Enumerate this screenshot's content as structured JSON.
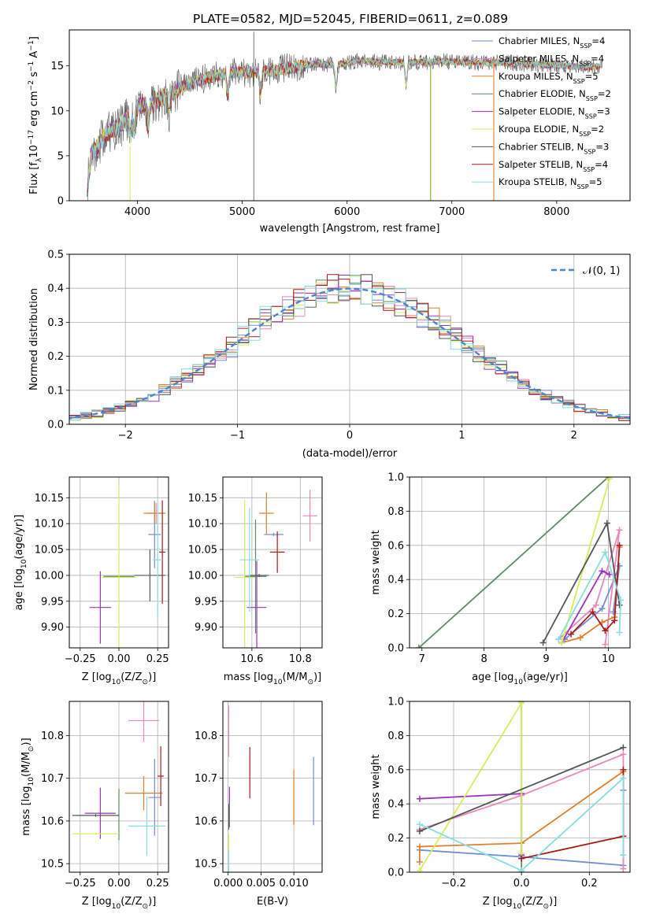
{
  "figure_title": "PLATE=0582, MJD=52045, FIBERID=0611, z=0.089",
  "series_colors": {
    "Chabrier MILES": "#6f8fd6",
    "Salpeter MILES": "#e888bb",
    "Kroupa MILES": "#e0802c",
    "Chabrier ELODIE": "#5e8c62",
    "Salpeter ELODIE": "#9933bb",
    "Kroupa ELODIE": "#d4ee5e",
    "Chabrier STELIB": "#555555",
    "Salpeter STELIB": "#a81c1c",
    "Kroupa STELIB": "#88dde0"
  },
  "chart_data": [
    {
      "id": "spectrum",
      "type": "line",
      "title": "PLATE=0582, MJD=52045, FIBERID=0611, z=0.089",
      "xlabel": "wavelength [Angstrom, rest frame]",
      "ylabel_parts": [
        "Flux [f",
        "λ",
        "10",
        "−17",
        " erg cm",
        "−2",
        " s",
        "−1",
        " A",
        "−1",
        "]"
      ],
      "xlim": [
        3350,
        8700
      ],
      "ylim": [
        0,
        19
      ],
      "xticks": [
        4000,
        5000,
        6000,
        7000,
        8000
      ],
      "yticks": [
        0,
        5,
        10,
        15
      ],
      "grid": false,
      "legend_position": "upper right",
      "legend": [
        {
          "label": "Chabrier MILES, N",
          "sub": "SSP",
          "suffix": "=4",
          "color": "#6f8fd6"
        },
        {
          "label": "Salpeter MILES, N",
          "sub": "SSP",
          "suffix": "=4",
          "color": "#e888bb"
        },
        {
          "label": "Kroupa MILES, N",
          "sub": "SSP",
          "suffix": "=5",
          "color": "#e0802c"
        },
        {
          "label": "Chabrier ELODIE, N",
          "sub": "SSP",
          "suffix": "=2",
          "color": "#5e8c62"
        },
        {
          "label": "Salpeter ELODIE, N",
          "sub": "SSP",
          "suffix": "=3",
          "color": "#9933bb"
        },
        {
          "label": "Kroupa ELODIE, N",
          "sub": "SSP",
          "suffix": "=2",
          "color": "#d4ee5e"
        },
        {
          "label": "Chabrier STELIB, N",
          "sub": "SSP",
          "suffix": "=3",
          "color": "#555555"
        },
        {
          "label": "Salpeter STELIB, N",
          "sub": "SSP",
          "suffix": "=4",
          "color": "#a81c1c"
        },
        {
          "label": "Kroupa STELIB, N",
          "sub": "SSP",
          "suffix": "=5",
          "color": "#88dde0"
        }
      ],
      "data_trend": {
        "wavelength": [
          3530,
          3700,
          3850,
          4000,
          4150,
          4300,
          4500,
          4700,
          4900,
          5100,
          5300,
          5500,
          5700,
          5900,
          6100,
          6300,
          6500,
          6700,
          6900,
          7100,
          7300,
          7500,
          7700,
          7900,
          8100,
          8300
        ],
        "flux": [
          4.5,
          7.5,
          8.5,
          10.5,
          10.8,
          12.0,
          13.0,
          13.8,
          14.3,
          14.3,
          14.5,
          14.9,
          15.2,
          15.1,
          15.6,
          15.4,
          15.4,
          15.4,
          15.5,
          15.4,
          15.3,
          15.4,
          15.2,
          15.1,
          15.0,
          14.9
        ]
      },
      "notable_features": {
        "spike_wavelengths": [
          5110,
          6800,
          7400
        ],
        "absorption_wavelengths": [
          3934,
          3969,
          4102,
          4300,
          4861,
          5175,
          5895,
          6563
        ]
      }
    },
    {
      "id": "residual-hist",
      "type": "bar",
      "xlabel": "(data-model)/error",
      "ylabel": "Normed distribution",
      "xlim": [
        -2.5,
        2.5
      ],
      "ylim": [
        0,
        0.5
      ],
      "xticks": [
        -2,
        -1,
        0,
        1,
        2
      ],
      "yticks": [
        0.0,
        0.1,
        0.2,
        0.3,
        0.4,
        0.5
      ],
      "grid": true,
      "legend_position": "upper right",
      "legend": [
        {
          "label": "𝒩(0, 1)",
          "color": "#4a86d0",
          "style": "dashed"
        }
      ],
      "bins_center": [
        -2.45,
        -2.35,
        -2.25,
        -2.15,
        -2.05,
        -1.95,
        -1.85,
        -1.75,
        -1.65,
        -1.55,
        -1.45,
        -1.35,
        -1.25,
        -1.15,
        -1.05,
        -0.95,
        -0.85,
        -0.75,
        -0.65,
        -0.55,
        -0.45,
        -0.35,
        -0.25,
        -0.15,
        -0.05,
        0.05,
        0.15,
        0.25,
        0.35,
        0.45,
        0.55,
        0.65,
        0.75,
        0.85,
        0.95,
        1.05,
        1.15,
        1.25,
        1.35,
        1.45,
        1.55,
        1.65,
        1.75,
        1.85,
        1.95,
        2.05,
        2.15,
        2.25,
        2.35,
        2.45
      ],
      "reference_curve": "standard normal N(0,1) density",
      "series_count": 9
    },
    {
      "id": "age-vs-Z",
      "type": "scatter",
      "xlabel_parts": [
        "Z [log",
        "10",
        "(Z/Z",
        "⊙",
        ")]"
      ],
      "ylabel_parts": [
        "age  [log",
        "10",
        "(age/yr)]"
      ],
      "xlim": [
        -0.32,
        0.32
      ],
      "ylim": [
        9.86,
        10.19
      ],
      "xticks": [
        -0.25,
        0.0,
        0.25
      ],
      "xtick_labels": [
        "−0.25",
        "0.00",
        "0.25"
      ],
      "yticks": [
        9.9,
        9.95,
        10.0,
        10.05,
        10.1,
        10.15
      ],
      "grid": true,
      "points": [
        {
          "series": "Chabrier MILES",
          "x": 0.23,
          "xerr": 0.04,
          "y": 10.079,
          "yerr": 0.065
        },
        {
          "series": "Salpeter MILES",
          "x": 0.24,
          "xerr": 0.05,
          "y": 10.12,
          "yerr": 0.02
        },
        {
          "series": "Kroupa MILES",
          "x": 0.23,
          "xerr": 0.07,
          "y": 10.12,
          "yerr": 0.02
        },
        {
          "series": "Chabrier ELODIE",
          "x": 0.0,
          "xerr": 0.1,
          "y": 9.998,
          "yerr": 0.003
        },
        {
          "series": "Salpeter ELODIE",
          "x": -0.12,
          "xerr": 0.07,
          "y": 9.938,
          "yerr": 0.07
        },
        {
          "series": "Kroupa ELODIE",
          "x": -0.0,
          "xerr": 0.11,
          "y": 9.996,
          "yerr": 0.18
        },
        {
          "series": "Chabrier STELIB",
          "x": 0.2,
          "xerr": 0.1,
          "y": 10.0,
          "yerr": 0.05
        },
        {
          "series": "Salpeter STELIB",
          "x": 0.28,
          "xerr": 0.02,
          "y": 10.045,
          "yerr": 0.1
        },
        {
          "series": "Kroupa STELIB",
          "x": 0.25,
          "xerr": 0.03,
          "y": 10.03,
          "yerr": 0.11
        }
      ]
    },
    {
      "id": "age-vs-mass",
      "type": "scatter",
      "xlabel_parts": [
        "mass [log",
        "10",
        "(M/M",
        "⊙",
        ")]"
      ],
      "xlim": [
        10.48,
        10.89
      ],
      "ylim": [
        9.86,
        10.19
      ],
      "xticks": [
        10.6,
        10.8
      ],
      "xtick_labels": [
        "10.6",
        "10.8"
      ],
      "yticks": [
        9.9,
        9.95,
        10.0,
        10.05,
        10.1,
        10.15
      ],
      "grid": true,
      "points": [
        {
          "series": "Chabrier MILES",
          "x": 10.69,
          "xerr": 0.04,
          "y": 10.079,
          "yerr": 0.003
        },
        {
          "series": "Salpeter MILES",
          "x": 10.84,
          "xerr": 0.03,
          "y": 10.115,
          "yerr": 0.05
        },
        {
          "series": "Kroupa MILES",
          "x": 10.66,
          "xerr": 0.03,
          "y": 10.12,
          "yerr": 0.04
        },
        {
          "series": "Chabrier ELODIE",
          "x": 10.615,
          "xerr": 0.045,
          "y": 9.998,
          "yerr": 0.11
        },
        {
          "series": "Salpeter ELODIE",
          "x": 10.62,
          "xerr": 0.04,
          "y": 9.938,
          "yerr": 0.09
        },
        {
          "series": "Kroupa ELODIE",
          "x": 10.57,
          "xerr": 0.04,
          "y": 9.996,
          "yerr": 0.15
        },
        {
          "series": "Chabrier STELIB",
          "x": 10.63,
          "xerr": 0.04,
          "y": 10.0,
          "yerr": 0.003
        },
        {
          "series": "Salpeter STELIB",
          "x": 10.705,
          "xerr": 0.03,
          "y": 10.045,
          "yerr": 0.04
        },
        {
          "series": "Kroupa STELIB",
          "x": 10.59,
          "xerr": 0.04,
          "y": 10.03,
          "yerr": 0.1
        }
      ]
    },
    {
      "id": "weight-vs-age",
      "type": "line",
      "xlabel_parts": [
        "age  [log",
        "10",
        "(age/yr)]"
      ],
      "ylabel": "mass weight",
      "xlim": [
        6.8,
        10.35
      ],
      "ylim": [
        0,
        1.0
      ],
      "xticks": [
        7,
        8,
        9,
        10
      ],
      "yticks": [
        0.0,
        0.2,
        0.4,
        0.6,
        0.8,
        1.0
      ],
      "grid": true,
      "series": [
        {
          "name": "Chabrier MILES",
          "x": [
            9.3,
            9.9,
            10.18,
            10.08
          ],
          "y": [
            0.05,
            0.23,
            0.48,
            0.21
          ]
        },
        {
          "name": "Salpeter MILES",
          "x": [
            9.2,
            9.8,
            10.18,
            9.95
          ],
          "y": [
            0.05,
            0.25,
            0.69,
            0.02
          ]
        },
        {
          "name": "Kroupa MILES",
          "x": [
            9.25,
            9.55,
            9.9,
            10.1,
            10.18
          ],
          "y": [
            0.03,
            0.06,
            0.15,
            0.18,
            0.59
          ]
        },
        {
          "name": "Chabrier ELODIE",
          "x": [
            6.95,
            10.0
          ],
          "y": [
            0.0,
            1.0
          ]
        },
        {
          "name": "Salpeter ELODIE",
          "x": [
            9.25,
            9.9,
            10.02
          ],
          "y": [
            0.03,
            0.45,
            0.43
          ]
        },
        {
          "name": "Kroupa ELODIE",
          "x": [
            9.25,
            10.02
          ],
          "y": [
            0.03,
            0.99
          ]
        },
        {
          "name": "Chabrier STELIB",
          "x": [
            8.95,
            9.98,
            10.18
          ],
          "y": [
            0.03,
            0.73,
            0.25
          ]
        },
        {
          "name": "Salpeter STELIB",
          "x": [
            9.4,
            9.75,
            9.95,
            10.1,
            10.18
          ],
          "y": [
            0.08,
            0.21,
            0.1,
            0.16,
            0.6
          ]
        },
        {
          "name": "Kroupa STELIB",
          "x": [
            9.2,
            9.95,
            10.2,
            10.18
          ],
          "y": [
            0.05,
            0.56,
            0.28,
            0.09
          ]
        }
      ]
    },
    {
      "id": "mass-vs-Z",
      "type": "scatter",
      "xlabel_parts": [
        "Z [log",
        "10",
        "(Z/Z",
        "⊙",
        ")]"
      ],
      "ylabel_parts": [
        "mass [log",
        "10",
        "(M/M",
        "⊙",
        ")]"
      ],
      "xlim": [
        -0.32,
        0.32
      ],
      "ylim": [
        10.48,
        10.88
      ],
      "xticks": [
        -0.25,
        0.0,
        0.25
      ],
      "xtick_labels": [
        "−0.25",
        "0.00",
        "0.25"
      ],
      "yticks": [
        10.5,
        10.6,
        10.7,
        10.8
      ],
      "grid": true,
      "points": [
        {
          "series": "Chabrier MILES",
          "x": 0.23,
          "xerr": 0.04,
          "y": 10.655,
          "yerr": 0.09
        },
        {
          "series": "Salpeter MILES",
          "x": 0.16,
          "xerr": 0.1,
          "y": 10.835,
          "yerr": 0.05
        },
        {
          "series": "Kroupa MILES",
          "x": 0.16,
          "xerr": 0.12,
          "y": 10.665,
          "yerr": 0.04
        },
        {
          "series": "Chabrier ELODIE",
          "x": 0.0,
          "xerr": 0.003,
          "y": 10.615,
          "yerr": 0.06
        },
        {
          "series": "Salpeter ELODIE",
          "x": -0.12,
          "xerr": 0.1,
          "y": 10.618,
          "yerr": 0.06
        },
        {
          "series": "Kroupa ELODIE",
          "x": -0.15,
          "xerr": 0.15,
          "y": 10.57,
          "yerr": 0.003
        },
        {
          "series": "Chabrier STELIB",
          "x": -0.15,
          "xerr": 0.15,
          "y": 10.613,
          "yerr": 0.003
        },
        {
          "series": "Salpeter STELIB",
          "x": 0.27,
          "xerr": 0.02,
          "y": 10.705,
          "yerr": 0.07
        },
        {
          "series": "Kroupa STELIB",
          "x": 0.18,
          "xerr": 0.12,
          "y": 10.588,
          "yerr": 0.07
        }
      ]
    },
    {
      "id": "mass-vs-ebv",
      "type": "scatter",
      "xlabel": "E(B-V)",
      "xlim": [
        -0.0008,
        0.0143
      ],
      "ylim": [
        10.48,
        10.88
      ],
      "xticks": [
        0.0,
        0.005,
        0.01
      ],
      "xtick_labels": [
        "0.000",
        "0.005",
        "0.010"
      ],
      "yticks": [
        10.5,
        10.6,
        10.7,
        10.8
      ],
      "grid": true,
      "points": [
        {
          "series": "Chabrier MILES",
          "x": 0.013,
          "y": 10.67,
          "yerr": 0.08
        },
        {
          "series": "Salpeter MILES",
          "x": 0.0001,
          "y": 10.81,
          "yerr": 0.06
        },
        {
          "series": "Kroupa MILES",
          "x": 0.01,
          "y": 10.655,
          "yerr": 0.065
        },
        {
          "series": "Chabrier ELODIE",
          "x": 0.0002,
          "y": 10.615,
          "yerr": 0.03
        },
        {
          "series": "Salpeter ELODIE",
          "x": 0.0002,
          "y": 10.66,
          "yerr": 0.02
        },
        {
          "series": "Kroupa ELODIE",
          "x": 0.0001,
          "y": 10.53,
          "yerr": 0.04
        },
        {
          "series": "Chabrier STELIB",
          "x": 0.0001,
          "y": 10.61,
          "yerr": 0.03
        },
        {
          "series": "Salpeter STELIB",
          "x": 0.0033,
          "y": 10.713,
          "yerr": 0.06
        },
        {
          "series": "Kroupa STELIB",
          "x": 0.0001,
          "y": 10.5,
          "yerr": 0.03
        }
      ]
    },
    {
      "id": "weight-vs-Z",
      "type": "line",
      "xlabel_parts": [
        "Z [log",
        "10",
        "(Z/Z",
        "⊙",
        ")]"
      ],
      "ylabel": "mass weight",
      "xlim": [
        -0.33,
        0.32
      ],
      "ylim": [
        0,
        1.0
      ],
      "xticks": [
        -0.2,
        0.0,
        0.2
      ],
      "xtick_labels": [
        "−0.2",
        "0.0",
        "0.2"
      ],
      "yticks": [
        0.0,
        0.2,
        0.4,
        0.6,
        0.8,
        1.0
      ],
      "grid": true,
      "series": [
        {
          "name": "Chabrier MILES",
          "x": [
            -0.3,
            0.0,
            0.3,
            0.3
          ],
          "y": [
            0.13,
            0.09,
            0.04,
            0.48
          ]
        },
        {
          "name": "Salpeter MILES",
          "x": [
            -0.3,
            0.0,
            0.3,
            0.3
          ],
          "y": [
            0.25,
            0.45,
            0.69,
            0.02
          ]
        },
        {
          "name": "Kroupa MILES",
          "x": [
            -0.3,
            -0.3,
            0.0,
            0.3
          ],
          "y": [
            0.06,
            0.15,
            0.17,
            0.59
          ]
        },
        {
          "name": "Chabrier ELODIE",
          "x": [
            0.0,
            0.0
          ],
          "y": [
            0.0,
            1.0
          ]
        },
        {
          "name": "Salpeter ELODIE",
          "x": [
            -0.3,
            0.0,
            0.0
          ],
          "y": [
            0.43,
            0.46,
            0.1
          ]
        },
        {
          "name": "Kroupa ELODIE",
          "x": [
            -0.3,
            0.0,
            0.0
          ],
          "y": [
            0.01,
            0.99,
            0.11
          ]
        },
        {
          "name": "Chabrier STELIB",
          "x": [
            -0.3,
            0.3
          ],
          "y": [
            0.24,
            0.73
          ]
        },
        {
          "name": "Salpeter STELIB",
          "x": [
            0.0,
            0.3,
            0.3
          ],
          "y": [
            0.08,
            0.21,
            0.6
          ]
        },
        {
          "name": "Kroupa STELIB",
          "x": [
            -0.3,
            0.0,
            0.3,
            0.3
          ],
          "y": [
            0.28,
            0.01,
            0.55,
            0.1
          ]
        }
      ]
    }
  ]
}
